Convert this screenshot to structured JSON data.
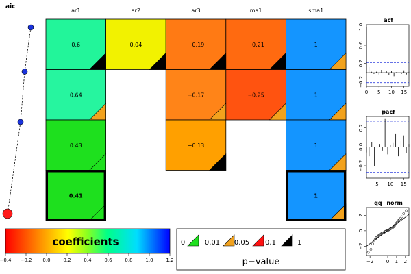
{
  "chart_data": {
    "type": "heatmap",
    "title": "",
    "aic": {
      "label": "aic",
      "points": 4,
      "best_model": 4
    },
    "columns": [
      "ar1",
      "ar2",
      "ar3",
      "ma1",
      "sma1"
    ],
    "models": [
      {
        "cells": [
          {
            "value": "0.6",
            "color": "#22f59a",
            "pcolor": "#000000"
          },
          {
            "value": "0.04",
            "color": "#f2f200",
            "pcolor": "#000000"
          },
          {
            "value": "−0.19",
            "color": "#ff7a14",
            "pcolor": "#000000"
          },
          {
            "value": "−0.21",
            "color": "#ff6a10",
            "pcolor": "#000000"
          },
          {
            "value": "1",
            "color": "#1495ff",
            "pcolor": "#f2a21d"
          }
        ]
      },
      {
        "cells": [
          {
            "value": "0.64",
            "color": "#26f59f",
            "pcolor": "#f2a21d"
          },
          null,
          {
            "value": "−0.17",
            "color": "#ff8418",
            "pcolor": "#f2a21d"
          },
          {
            "value": "−0.25",
            "color": "#ff5310",
            "pcolor": "#f2a21d"
          },
          {
            "value": "1",
            "color": "#1495ff",
            "pcolor": "#f2a21d"
          }
        ]
      },
      {
        "cells": [
          {
            "value": "0.43",
            "color": "#1ee01e",
            "pcolor": "#1ee01e"
          },
          null,
          {
            "value": "−0.13",
            "color": "#ffa000",
            "pcolor": "#000000"
          },
          null,
          {
            "value": "1",
            "color": "#1495ff",
            "pcolor": "#f2a21d"
          }
        ]
      },
      {
        "bold": true,
        "cells": [
          {
            "value": "0.41",
            "color": "#1ee01e",
            "pcolor": "#1ee01e"
          },
          null,
          null,
          null,
          {
            "value": "1",
            "color": "#1495ff",
            "pcolor": "#f2a21d"
          }
        ]
      }
    ],
    "colorbar": {
      "label": "coefficients",
      "ticks": [
        "−0.4",
        "−0.2",
        "0.0",
        "0.2",
        "0.4",
        "0.6",
        "0.8",
        "1.0",
        "1.2"
      ],
      "range": [
        -0.4,
        1.2
      ]
    },
    "pvalue_legend": {
      "label": "p−value",
      "breaks": [
        "0",
        "0.01",
        "0.05",
        "0.1",
        "1"
      ],
      "colors": [
        "#1ee01e",
        "#f2a21d",
        "#ff1010",
        "#000000"
      ]
    },
    "acf": {
      "title": "acf",
      "xticks": [
        "0",
        "5",
        "10",
        "15"
      ],
      "yticks": [
        "−0.2",
        "0.2",
        "0.6",
        "1.0"
      ],
      "xlim": [
        0,
        17
      ],
      "ylim": [
        -0.3,
        1.05
      ],
      "ci": 0.22,
      "lags": [
        0,
        1,
        2,
        3,
        4,
        5,
        6,
        7,
        8,
        9,
        10,
        11,
        12,
        13,
        14,
        15,
        16,
        17
      ],
      "values": [
        1.0,
        0.12,
        0.02,
        -0.03,
        0.02,
        -0.04,
        0.06,
        -0.02,
        0.03,
        -0.05,
        0.04,
        -0.08,
        0.01,
        -0.06,
        -0.03,
        0.05,
        -0.04,
        0.02
      ]
    },
    "pacf": {
      "title": "pacf",
      "xticks": [
        "5",
        "10",
        "15"
      ],
      "yticks": [
        "−0.2",
        "0.0",
        "0.2"
      ],
      "xlim": [
        1,
        17
      ],
      "ylim": [
        -0.33,
        0.32
      ],
      "ci": 0.27,
      "lags": [
        1,
        2,
        3,
        4,
        5,
        6,
        7,
        8,
        9,
        10,
        11,
        12,
        13,
        14,
        15,
        16,
        17
      ],
      "values": [
        -0.06,
        -0.1,
        0.05,
        -0.2,
        0.06,
        0.03,
        -0.04,
        0.3,
        -0.08,
        0.02,
        0.04,
        0.14,
        -0.1,
        0.06,
        0.12,
        -0.07,
        0.03
      ]
    },
    "qqnorm": {
      "title": "qq−norm",
      "xticks": [
        "−2",
        "0",
        "1",
        "2"
      ],
      "yticks": [
        "−2",
        "0",
        "2"
      ],
      "xlim": [
        -2.4,
        2.4
      ],
      "ylim": [
        -3.2,
        3.0
      ],
      "line": [
        [
          -2.4,
          -2.0
        ],
        [
          2.4,
          2.1
        ]
      ],
      "points": [
        [
          -2.2,
          -2.8
        ],
        [
          -1.9,
          -2.4
        ],
        [
          -1.7,
          -1.7
        ],
        [
          -1.55,
          -1.3
        ],
        [
          -1.4,
          -1.1
        ],
        [
          -1.3,
          -0.9
        ],
        [
          -1.2,
          -0.8
        ],
        [
          -1.1,
          -0.7
        ],
        [
          -1.0,
          -0.6
        ],
        [
          -0.9,
          -0.55
        ],
        [
          -0.8,
          -0.45
        ],
        [
          -0.7,
          -0.35
        ],
        [
          -0.6,
          -0.3
        ],
        [
          -0.5,
          -0.25
        ],
        [
          -0.4,
          -0.2
        ],
        [
          -0.3,
          -0.1
        ],
        [
          -0.2,
          -0.05
        ],
        [
          -0.1,
          0.0
        ],
        [
          0.0,
          0.05
        ],
        [
          0.1,
          0.1
        ],
        [
          0.2,
          0.15
        ],
        [
          0.3,
          0.25
        ],
        [
          0.4,
          0.3
        ],
        [
          0.5,
          0.35
        ],
        [
          0.6,
          0.45
        ],
        [
          0.7,
          0.55
        ],
        [
          0.8,
          0.7
        ],
        [
          0.9,
          0.85
        ],
        [
          1.0,
          1.0
        ],
        [
          1.1,
          1.15
        ],
        [
          1.2,
          1.3
        ],
        [
          1.3,
          1.45
        ],
        [
          1.45,
          1.6
        ],
        [
          1.6,
          1.8
        ],
        [
          1.8,
          2.2
        ],
        [
          2.1,
          2.6
        ]
      ]
    }
  }
}
